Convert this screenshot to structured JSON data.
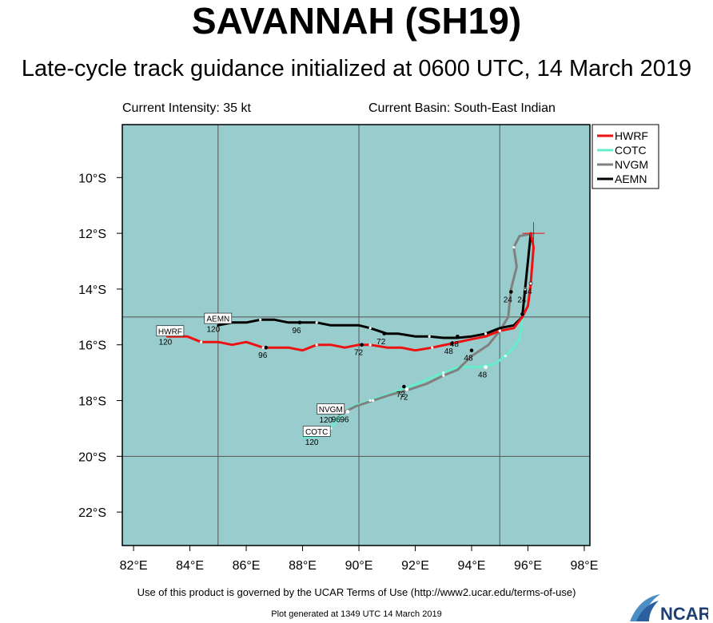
{
  "header": {
    "title": "SAVANNAH (SH19)",
    "subtitle": "Late-cycle track guidance initialized at 0600 UTC, 14 March 2019",
    "intensity_text": "Current Intensity: 35 kt",
    "basin_text": "Current Basin: South-East Indian"
  },
  "footer": {
    "terms": "Use of this product is governed by the UCAR Terms of Use (http://www2.ucar.edu/terms-of-use)",
    "generated": "Plot generated at 1349 UTC  14 March 2019",
    "logo_text": "NCAR"
  },
  "chart_data": {
    "type": "line",
    "projection": "lat-lon map",
    "xlim": [
      81.6,
      98.2
    ],
    "ylim": [
      -23.2,
      -8.1
    ],
    "x_ticks": [
      82,
      84,
      86,
      88,
      90,
      92,
      94,
      96,
      98
    ],
    "x_tick_labels": [
      "82°E",
      "84°E",
      "86°E",
      "88°E",
      "90°E",
      "92°E",
      "94°E",
      "96°E",
      "98°E"
    ],
    "y_ticks": [
      -10,
      -12,
      -14,
      -16,
      -18,
      -20,
      -22
    ],
    "y_tick_labels": [
      "10°S",
      "12°S",
      "14°S",
      "16°S",
      "18°S",
      "20°S",
      "22°S"
    ],
    "gridlines_lon": [
      85,
      90,
      95
    ],
    "gridlines_lat": [
      -15,
      -20
    ],
    "background_color": "#99cccc",
    "legend": {
      "placement": "top-right"
    },
    "current_position": {
      "lon": 96.2,
      "lat": -12.0
    },
    "series": [
      {
        "name": "HWRF",
        "color": "#ee1111",
        "lon": [
          96.1,
          96.2,
          96.1,
          96.0,
          95.8,
          95.5,
          95.0,
          94.5,
          94.0,
          93.3,
          92.6,
          92.0,
          91.5,
          91.0,
          90.4,
          90.0,
          89.5,
          89.0,
          88.5,
          88.0,
          87.5,
          87.0,
          86.6,
          86.0,
          85.5,
          85.0,
          84.4,
          83.9,
          83.2
        ],
        "lat": [
          -12.0,
          -12.5,
          -13.8,
          -14.6,
          -15.0,
          -15.4,
          -15.5,
          -15.7,
          -15.8,
          -15.95,
          -16.1,
          -16.2,
          -16.1,
          -16.1,
          -16.0,
          -16.0,
          -16.1,
          -16.0,
          -16.0,
          -16.2,
          -16.1,
          -16.1,
          -16.1,
          -15.9,
          -16.0,
          -15.9,
          -15.9,
          -15.7,
          -15.7
        ],
        "time_markers": [
          {
            "lon": 96.1,
            "lat": -13.8,
            "label": "24"
          },
          {
            "lon": 95.8,
            "lat": -14.9,
            "label": ""
          },
          {
            "lon": 93.3,
            "lat": -15.95,
            "label": "48"
          },
          {
            "lon": 90.1,
            "lat": -16.0,
            "label": "72"
          },
          {
            "lon": 86.7,
            "lat": -16.1,
            "label": "96"
          }
        ],
        "end_label": "HWRF",
        "end_label_lon": 83.3,
        "end_label_lat": -15.5,
        "end_hour": "120"
      },
      {
        "name": "COTC",
        "color": "#66eecc",
        "lon": [
          96.1,
          96.0,
          95.9,
          95.8,
          95.7,
          95.5,
          95.2,
          94.8,
          94.2,
          93.5,
          93.0,
          92.3,
          91.8,
          91.0,
          90.4,
          89.8,
          89.5,
          89.2,
          89.0,
          88.5,
          88.0
        ],
        "lat": [
          -12.0,
          -13.0,
          -14.0,
          -15.0,
          -15.8,
          -16.1,
          -16.4,
          -16.7,
          -16.8,
          -16.8,
          -17.0,
          -17.3,
          -17.5,
          -17.8,
          -18.0,
          -18.2,
          -18.4,
          -18.7,
          -19.0,
          -19.3,
          -19.3
        ],
        "time_markers": [
          {
            "lon": 95.9,
            "lat": -14.1,
            "label": "24"
          },
          {
            "lon": 94.5,
            "lat": -16.8,
            "label": "48"
          },
          {
            "lon": 91.7,
            "lat": -17.6,
            "label": "72"
          },
          {
            "lon": 89.6,
            "lat": -18.4,
            "label": "96"
          }
        ],
        "end_label": "COTC",
        "end_label_lon": 88.5,
        "end_label_lat": -19.1,
        "end_hour": "120"
      },
      {
        "name": "NVGM",
        "color": "#808080",
        "lon": [
          96.2,
          95.7,
          95.5,
          95.6,
          95.4,
          95.3,
          95.0,
          94.6,
          94.0,
          93.5,
          93.0,
          92.4,
          91.8,
          91.1,
          90.5,
          89.9,
          89.3
        ],
        "lat": [
          -12.0,
          -12.1,
          -12.5,
          -13.2,
          -14.0,
          -15.0,
          -15.5,
          -16.0,
          -16.4,
          -16.9,
          -17.1,
          -17.4,
          -17.6,
          -17.8,
          -18.0,
          -18.2,
          -18.5
        ],
        "time_markers": [
          {
            "lon": 95.4,
            "lat": -14.1,
            "label": "24"
          },
          {
            "lon": 94.0,
            "lat": -16.2,
            "label": "48"
          },
          {
            "lon": 91.6,
            "lat": -17.5,
            "label": "72"
          },
          {
            "lon": 89.3,
            "lat": -18.4,
            "label": "96"
          }
        ],
        "end_label": "NVGM",
        "end_label_lon": 89.0,
        "end_label_lat": -18.3,
        "end_hour": "120"
      },
      {
        "name": "AEMN",
        "color": "#000000",
        "lon": [
          96.1,
          96.0,
          95.9,
          95.8,
          95.5,
          95.0,
          94.5,
          94.0,
          93.5,
          93.0,
          92.5,
          92.0,
          91.4,
          91.0,
          90.4,
          90.0,
          89.5,
          89.0,
          88.5,
          88.0,
          87.5,
          87.0,
          86.5,
          86.0,
          85.5,
          85.0
        ],
        "lat": [
          -12.0,
          -13.0,
          -14.0,
          -15.0,
          -15.3,
          -15.4,
          -15.6,
          -15.7,
          -15.75,
          -15.75,
          -15.7,
          -15.7,
          -15.6,
          -15.6,
          -15.4,
          -15.3,
          -15.3,
          -15.3,
          -15.2,
          -15.2,
          -15.2,
          -15.1,
          -15.1,
          -15.2,
          -15.2,
          -15.3
        ],
        "time_markers": [
          {
            "lon": 95.9,
            "lat": -14.1,
            "label": ""
          },
          {
            "lon": 93.5,
            "lat": -15.7,
            "label": "48"
          },
          {
            "lon": 90.9,
            "lat": -15.6,
            "label": "72"
          },
          {
            "lon": 87.9,
            "lat": -15.2,
            "label": "96"
          }
        ],
        "end_label": "AEMN",
        "end_label_lon": 85.0,
        "end_label_lat": -15.05,
        "end_hour": "120"
      }
    ]
  }
}
